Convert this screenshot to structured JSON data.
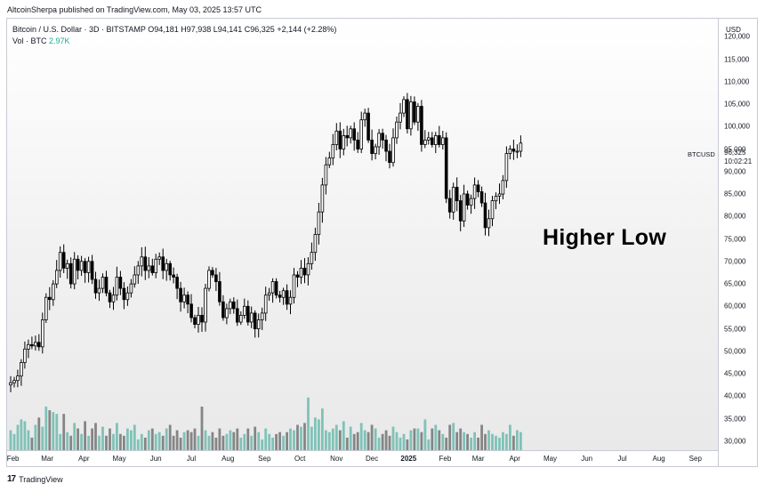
{
  "publisher_line": "AltcoinSherpa published on TradingView.com, May 03, 2025 13:57 UTC",
  "legend": {
    "symbol_line": "Bitcoin / U.S. Dollar · 3D · BITSTAMP  O94,181  H97,938  L94,141  C96,325  +2,144 (+2.28%)",
    "vol_label": "Vol · BTC",
    "vol_value": "2.97K"
  },
  "annotation": "Higher Low",
  "price_scale": {
    "currency": "USD",
    "ticks": [
      "120,000",
      "115,000",
      "110,000",
      "105,000",
      "100,000",
      "95,000",
      "90,000",
      "85,000",
      "80,000",
      "75,000",
      "70,000",
      "65,000",
      "60,000",
      "55,000",
      "50,000",
      "45,000",
      "40,000",
      "35,000",
      "30,000"
    ],
    "last_price": "96,325",
    "countdown": "10:02:21",
    "symbol_tag": "BTCUSD"
  },
  "time_scale": {
    "labels": [
      "Feb",
      "Mar",
      "Apr",
      "May",
      "Jun",
      "Jul",
      "Aug",
      "Sep",
      "Oct",
      "Nov",
      "Dec",
      "2025",
      "Feb",
      "Mar",
      "Apr",
      "May",
      "Jun",
      "Jul",
      "Aug",
      "Sep"
    ]
  },
  "footer": {
    "brand": "TradingView",
    "logo": "17"
  },
  "colors": {
    "up": "#ffffff",
    "down": "#000000",
    "vol_up": "#7fc2b8",
    "vol_down": "#858585"
  },
  "chart_data": {
    "type": "candlestick",
    "title": "Bitcoin / U.S. Dollar · 3D · BITSTAMP",
    "ylim": [
      28000,
      124000
    ],
    "y_unit": "USD",
    "candle_interval": "3D",
    "x_range": [
      "2024-01-27",
      "2025-09-20"
    ],
    "closes": [
      43000,
      43500,
      44500,
      47500,
      50500,
      51500,
      51200,
      52000,
      51000,
      57000,
      62000,
      61500,
      65000,
      68000,
      72000,
      68500,
      69500,
      65000,
      70500,
      68000,
      70000,
      67500,
      70000,
      66000,
      63000,
      64000,
      66500,
      63000,
      61000,
      62500,
      66500,
      64000,
      61500,
      63000,
      65000,
      67000,
      69000,
      71000,
      68000,
      69000,
      67500,
      70500,
      71000,
      68000,
      69500,
      67000,
      66500,
      64000,
      61000,
      62500,
      60500,
      57500,
      56000,
      58000,
      56500,
      64000,
      68000,
      67000,
      65500,
      61000,
      57500,
      59500,
      61000,
      59500,
      56500,
      58000,
      60000,
      56500,
      58500,
      55000,
      57000,
      58500,
      62500,
      63000,
      65500,
      62500,
      62000,
      63500,
      60500,
      62000,
      67000,
      66500,
      68500,
      67000,
      69500,
      72000,
      76000,
      81000,
      87000,
      91500,
      93000,
      96000,
      99000,
      95000,
      98000,
      97500,
      99500,
      97000,
      95000,
      101500,
      103000,
      97000,
      94000,
      95500,
      98500,
      97000,
      94500,
      92000,
      97500,
      101000,
      103000,
      106000,
      99500,
      105500,
      101000,
      104500,
      96000,
      97000,
      97500,
      96000,
      98000,
      96000,
      97500,
      84000,
      81000,
      86500,
      83500,
      79000,
      85000,
      82500,
      84000,
      87000,
      85500,
      83000,
      77500,
      79500,
      83500,
      84500,
      85000,
      88000,
      94000,
      95000,
      94500,
      94500,
      96325
    ],
    "volume_units": "relative",
    "volumes": [
      35,
      33,
      38,
      41,
      40,
      35,
      31,
      38,
      42,
      37,
      48,
      46,
      45,
      44,
      33,
      44,
      34,
      32,
      39,
      36,
      33,
      40,
      32,
      36,
      39,
      32,
      37,
      32,
      36,
      33,
      39,
      33,
      32,
      36,
      35,
      38,
      30,
      33,
      31,
      35,
      36,
      33,
      34,
      32,
      36,
      38,
      32,
      35,
      31,
      34,
      35,
      34,
      36,
      32,
      48,
      35,
      32,
      34,
      31,
      36,
      32,
      33,
      35,
      34,
      36,
      31,
      33,
      36,
      32,
      37,
      34,
      30,
      36,
      33,
      31,
      33,
      34,
      32,
      34,
      36,
      35,
      38,
      37,
      39,
      53,
      37,
      42,
      41,
      47,
      35,
      34,
      36,
      38,
      35,
      40,
      31,
      37,
      33,
      34,
      39,
      35,
      34,
      38,
      36,
      31,
      33,
      35,
      32,
      37,
      34,
      31,
      33,
      30,
      35,
      36,
      36,
      34,
      41,
      30,
      36,
      38,
      35,
      33,
      31,
      38,
      39,
      34,
      36,
      34,
      33,
      31,
      34,
      31,
      38,
      33,
      35,
      33,
      32,
      31,
      34,
      33,
      38,
      32,
      35,
      34
    ]
  }
}
